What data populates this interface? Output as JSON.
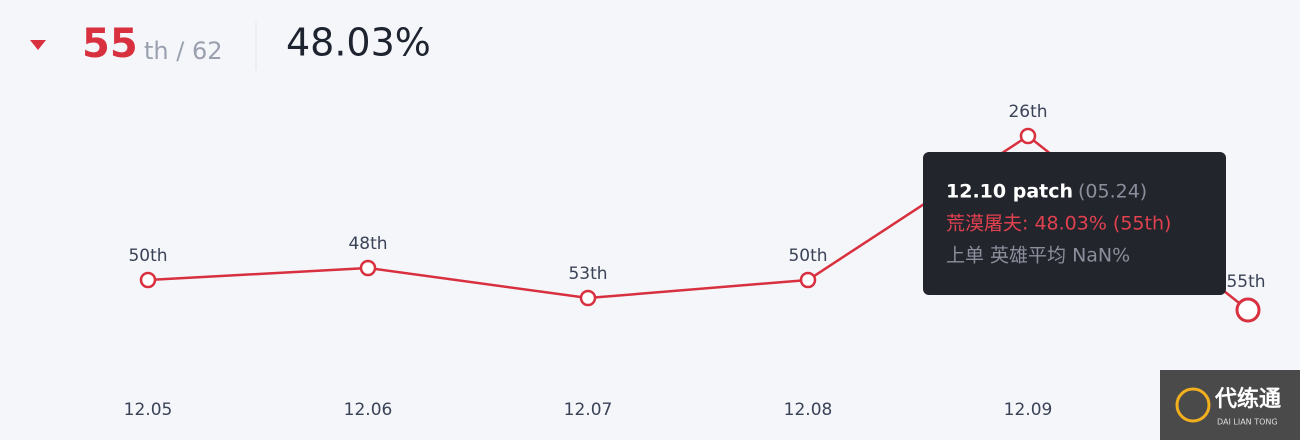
{
  "header": {
    "rank": "55",
    "rank_suffix": "th / 62",
    "win_rate": "48.03%"
  },
  "chart_data": {
    "type": "line",
    "categories": [
      "12.05",
      "12.06",
      "12.07",
      "12.08",
      "12.09",
      null
    ],
    "values": [
      50,
      48,
      53,
      50,
      26,
      55
    ],
    "value_labels": [
      "50th",
      "48th",
      "53th",
      "50th",
      "26th",
      "55th"
    ],
    "color": "#d8303f",
    "ylim": [
      60,
      20
    ]
  },
  "tooltip": {
    "title": "12.10 patch",
    "date": "(05.24)",
    "line1": "荒漠屠夫: 48.03% (55th)",
    "line2": "上单 英雄平均 NaN%"
  },
  "watermark": {
    "name": "代练通",
    "sub": "DAI LIAN TONG"
  }
}
